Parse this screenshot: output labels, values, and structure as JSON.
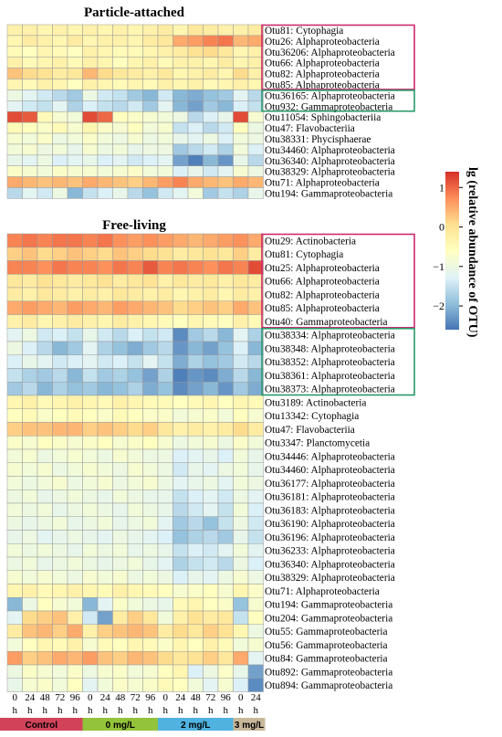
{
  "chart_data": [
    {
      "type": "heatmap",
      "title": "Particle-attached",
      "columns": [
        "0 h",
        "24 h",
        "48 h",
        "72 h",
        "96 h",
        "0 h",
        "24 h",
        "48 h",
        "72 h",
        "96 h",
        "0 h",
        "24 h",
        "48 h",
        "72 h",
        "96 h",
        "0 h",
        "24 h"
      ],
      "rows": [
        "Otu81: Cytophagia",
        "Otu26: Alphaproteobacteria",
        "Otu36206: Alphaproteobacteria",
        "Otu66: Alphaproteobacteria",
        "Otu82: Alphaproteobacteria",
        "Otu85: Alphaproteobacteria",
        "Otu36165: Alphaproteobacteria",
        "Otu932: Gammaproteobacteria",
        "Otu11054: Sphingobacteriia",
        "Otu47: Flavobacteriia",
        "Otu38331: Phycisphaerae",
        "Otu34460: Alphaproteobacteria",
        "Otu36340: Alphaproteobacteria",
        "Otu38329: Alphaproteobacteria",
        "Otu71: Alphaproteobacteria",
        "Otu194: Gammaproteobacteria"
      ],
      "values": [
        [
          -0.3,
          -0.3,
          -0.4,
          -0.3,
          -0.4,
          -0.3,
          -0.4,
          -0.3,
          -0.4,
          -0.3,
          -0.2,
          -0.4,
          -0.1,
          -0.2,
          -0.3,
          -0.3,
          -0.2
        ],
        [
          -0.4,
          -0.2,
          -0.3,
          -0.4,
          -0.2,
          -0.4,
          -0.3,
          -0.3,
          -0.4,
          -0.2,
          -0.1,
          0.5,
          0.6,
          0.8,
          0.9,
          0.4,
          0.5
        ],
        [
          -0.5,
          -0.6,
          -0.4,
          -0.5,
          -0.6,
          -0.3,
          -0.4,
          -0.5,
          -0.5,
          -0.4,
          -0.3,
          -0.2,
          0.0,
          0.1,
          -0.1,
          -0.4,
          -0.3
        ],
        [
          -0.3,
          -0.5,
          -0.4,
          -0.3,
          -0.5,
          -0.3,
          -0.4,
          -0.6,
          -0.4,
          -0.3,
          -0.5,
          -0.3,
          -0.3,
          -0.4,
          -0.2,
          -0.4,
          -0.3
        ],
        [
          0.3,
          0.1,
          0.0,
          -0.2,
          -0.1,
          0.4,
          0.1,
          -0.1,
          -0.2,
          -0.3,
          -0.1,
          -0.4,
          -0.3,
          -0.2,
          -0.4,
          0.1,
          -0.3
        ],
        [
          -0.4,
          -0.5,
          -0.3,
          -0.4,
          -0.6,
          -0.3,
          -0.4,
          -0.5,
          -0.4,
          -0.5,
          -0.3,
          -0.4,
          -0.3,
          -0.5,
          -0.4,
          -0.3,
          -0.4
        ],
        [
          -1.0,
          -1.2,
          -1.4,
          -1.6,
          -1.8,
          -1.0,
          -1.4,
          -1.5,
          -1.8,
          -2.0,
          -1.4,
          -2.0,
          -2.1,
          -1.9,
          -1.8,
          -1.2,
          -1.6
        ],
        [
          -1.2,
          -1.4,
          -1.5,
          -1.2,
          -1.7,
          -1.3,
          -1.5,
          -1.6,
          -1.4,
          -1.8,
          -1.2,
          -2.0,
          -2.2,
          -1.8,
          -2.0,
          -1.3,
          -1.5
        ],
        [
          1.2,
          1.1,
          -0.5,
          -0.8,
          -0.9,
          1.2,
          1.0,
          -0.6,
          -0.7,
          -0.8,
          -0.9,
          -1.0,
          -1.6,
          -1.3,
          -1.1,
          1.2,
          -0.8
        ],
        [
          -0.5,
          -0.6,
          -0.7,
          -0.5,
          -0.8,
          -0.4,
          -0.7,
          -0.8,
          -0.6,
          -0.9,
          -0.8,
          -1.5,
          -1.3,
          -1.6,
          -1.4,
          -0.6,
          -1.0
        ],
        [
          -0.8,
          -0.9,
          -0.7,
          -1.0,
          -0.9,
          -0.7,
          -0.9,
          -1.0,
          -0.8,
          -1.0,
          -0.9,
          -1.1,
          -1.2,
          -1.0,
          -1.3,
          -0.9,
          -1.0
        ],
        [
          -0.9,
          -0.8,
          -1.0,
          -0.9,
          -1.1,
          -0.8,
          -1.0,
          -0.9,
          -1.1,
          -1.0,
          -1.0,
          -1.8,
          -1.6,
          -1.4,
          -1.7,
          -0.9,
          -1.3
        ],
        [
          -1.1,
          -1.2,
          -1.0,
          -1.3,
          -1.2,
          -1.1,
          -1.3,
          -1.2,
          -1.4,
          -1.3,
          -1.2,
          -2.2,
          -2.5,
          -2.0,
          -2.3,
          -1.1,
          -1.6
        ],
        [
          -0.7,
          -0.8,
          -0.9,
          -0.7,
          -0.8,
          -0.8,
          -0.9,
          -0.8,
          -0.7,
          -0.9,
          -0.9,
          -1.3,
          -1.1,
          -1.4,
          -1.2,
          -0.8,
          -1.0
        ],
        [
          0.5,
          0.4,
          0.3,
          0.4,
          0.3,
          0.5,
          0.4,
          0.3,
          0.2,
          0.4,
          0.6,
          0.8,
          0.5,
          0.4,
          0.3,
          0.5,
          0.4
        ],
        [
          -1.6,
          -1.2,
          -1.4,
          -1.0,
          -2.0,
          -1.5,
          -1.3,
          -1.1,
          -1.6,
          -1.9,
          -1.4,
          -1.2,
          -0.9,
          -1.8,
          -1.5,
          -1.7,
          -1.1
        ]
      ],
      "highlight_boxes": [
        {
          "rows": [
            0,
            5
          ],
          "color": "#cc2a6e"
        },
        {
          "rows": [
            6,
            7
          ],
          "color": "#2a9a6a"
        }
      ]
    },
    {
      "type": "heatmap",
      "title": "Free-living",
      "columns": [
        "0 h",
        "24 h",
        "48 h",
        "72 h",
        "96 h",
        "0 h",
        "24 h",
        "48 h",
        "72 h",
        "96 h",
        "0 h",
        "24 h",
        "48 h",
        "72 h",
        "96 h",
        "0 h",
        "24 h"
      ],
      "rows": [
        "Otu29: Actinobacteria",
        "Otu81: Cytophagia",
        "Otu25: Alphaproteobacteria",
        "Otu66: Alphaproteobacteria",
        "Otu82: Alphaproteobacteria",
        "Otu85: Alphaproteobacteria",
        "Otu40: Gammaproteobacteria",
        "Otu38334: Alphaproteobacteria",
        "Otu38348: Alphaproteobacteria",
        "Otu38352: Alphaproteobacteria",
        "Otu38361: Alphaproteobacteria",
        "Otu38373: Alphaproteobacteria",
        "Otu3189: Actinobacteria",
        "Otu13342: Cytophagia",
        "Otu47: Flavobacteriia",
        "Otu3347: Planctomycetia",
        "Otu34446: Alphaproteobacteria",
        "Otu34460: Alphaproteobacteria",
        "Otu36177: Alphaproteobacteria",
        "Otu36181: Alphaproteobacteria",
        "Otu36183: Alphaproteobacteria",
        "Otu36190: Alphaproteobacteria",
        "Otu36196: Alphaproteobacteria",
        "Otu36233: Alphaproteobacteria",
        "Otu36340: Alphaproteobacteria",
        "Otu38329: Alphaproteobacteria",
        "Otu71: Alphaproteobacteria",
        "Otu194: Gammaproteobacteria",
        "Otu204: Gammaproteobacteria",
        "Otu55: Gammaproteobacteria",
        "Otu56: Gammaproteobacteria",
        "Otu84: Gammaproteobacteria",
        "Otu892: Gammaproteobacteria",
        "Otu894: Gammaproteobacteria"
      ],
      "values": [
        [
          0.8,
          0.9,
          0.8,
          0.9,
          0.9,
          0.8,
          0.9,
          0.7,
          0.6,
          0.7,
          0.6,
          0.5,
          0.4,
          0.5,
          0.6,
          0.7,
          0.5
        ],
        [
          0.2,
          0.3,
          0.1,
          0.2,
          0.3,
          0.2,
          0.1,
          0.3,
          0.2,
          0.1,
          0.0,
          -0.2,
          -0.1,
          0.0,
          -0.1,
          0.2,
          -0.2
        ],
        [
          0.8,
          0.8,
          0.7,
          0.9,
          0.8,
          0.8,
          0.7,
          0.9,
          0.8,
          1.1,
          0.8,
          0.9,
          0.8,
          0.7,
          0.9,
          0.8,
          1.2
        ],
        [
          -0.1,
          -0.2,
          0.0,
          -0.1,
          -0.2,
          -0.1,
          0.0,
          -0.2,
          -0.1,
          0.0,
          -0.3,
          -0.1,
          -0.2,
          -0.1,
          -0.3,
          -0.1,
          -0.2
        ],
        [
          -0.2,
          -0.3,
          -0.1,
          -0.2,
          -0.3,
          -0.2,
          -0.3,
          -0.1,
          -0.2,
          -0.3,
          -0.2,
          -0.4,
          -0.3,
          -0.2,
          -0.4,
          -0.2,
          -0.3
        ],
        [
          0.5,
          0.6,
          0.5,
          0.4,
          0.6,
          0.5,
          0.4,
          0.6,
          0.5,
          0.4,
          0.3,
          0.1,
          0.2,
          0.3,
          0.2,
          0.5,
          0.3
        ],
        [
          -0.3,
          -0.2,
          -0.4,
          -0.3,
          -0.2,
          -0.3,
          -0.4,
          -0.2,
          -0.3,
          -0.4,
          -0.5,
          -0.6,
          -0.4,
          -0.5,
          -0.6,
          -0.3,
          -0.5
        ],
        [
          -1.2,
          -1.0,
          -1.4,
          -1.3,
          -1.5,
          -1.1,
          -1.4,
          -1.6,
          -1.3,
          -1.5,
          -1.4,
          -2.4,
          -1.8,
          -1.6,
          -2.0,
          -1.2,
          -1.7
        ],
        [
          -1.0,
          -1.3,
          -1.6,
          -2.0,
          -1.8,
          -1.2,
          -1.7,
          -1.9,
          -2.1,
          -1.8,
          -1.6,
          -2.3,
          -2.0,
          -2.2,
          -1.9,
          -1.3,
          -2.0
        ],
        [
          -1.3,
          -1.1,
          -1.2,
          -1.4,
          -1.3,
          -1.2,
          -1.4,
          -1.3,
          -1.5,
          -1.2,
          -1.5,
          -2.1,
          -1.7,
          -1.9,
          -1.8,
          -1.4,
          -1.6
        ],
        [
          -1.5,
          -1.7,
          -1.8,
          -1.6,
          -2.0,
          -1.5,
          -1.8,
          -1.7,
          -1.9,
          -2.2,
          -1.7,
          -2.5,
          -2.3,
          -2.4,
          -2.1,
          -1.6,
          -2.0
        ],
        [
          -1.8,
          -1.6,
          -2.0,
          -1.7,
          -1.9,
          -1.8,
          -2.0,
          -1.9,
          -1.7,
          -2.1,
          -1.9,
          -2.4,
          -2.2,
          -2.0,
          -2.3,
          -1.8,
          -2.1
        ],
        [
          -0.4,
          -0.3,
          -0.5,
          -0.4,
          -0.3,
          -0.4,
          -0.5,
          -0.3,
          -0.4,
          -0.5,
          -0.5,
          -0.6,
          -0.5,
          -0.4,
          -0.6,
          -0.4,
          -0.5
        ],
        [
          -0.6,
          -0.5,
          -0.7,
          -0.6,
          -0.5,
          -0.6,
          -0.7,
          -0.5,
          -0.6,
          -0.7,
          -0.7,
          -0.9,
          -0.8,
          -0.7,
          -0.9,
          -0.6,
          -0.8
        ],
        [
          0.2,
          0.3,
          0.3,
          0.4,
          0.4,
          0.2,
          0.3,
          0.2,
          0.1,
          0.2,
          -0.1,
          -0.3,
          -0.2,
          -0.3,
          -0.2,
          0.1,
          -0.2
        ],
        [
          -0.7,
          -0.8,
          -0.6,
          -0.7,
          -0.8,
          -0.7,
          -0.6,
          -0.8,
          -0.7,
          -0.6,
          -0.8,
          -1.0,
          -0.9,
          -0.8,
          -1.0,
          -0.7,
          -0.9
        ],
        [
          -0.9,
          -0.8,
          -1.0,
          -0.9,
          -0.8,
          -0.9,
          -1.0,
          -0.8,
          -0.9,
          -1.0,
          -1.0,
          -1.3,
          -1.2,
          -1.1,
          -1.3,
          -0.9,
          -1.1
        ],
        [
          -0.8,
          -0.9,
          -0.8,
          -1.0,
          -0.9,
          -0.8,
          -0.9,
          -1.0,
          -0.8,
          -0.9,
          -1.0,
          -1.4,
          -1.1,
          -1.2,
          -1.0,
          -0.9,
          -1.1
        ],
        [
          -0.9,
          -1.0,
          -0.9,
          -0.8,
          -1.0,
          -0.9,
          -0.8,
          -1.0,
          -0.9,
          -0.8,
          -1.0,
          -1.2,
          -1.1,
          -1.0,
          -1.2,
          -0.9,
          -1.0
        ],
        [
          -1.0,
          -0.9,
          -1.1,
          -1.0,
          -0.9,
          -1.0,
          -1.1,
          -0.9,
          -1.0,
          -1.1,
          -1.1,
          -1.5,
          -1.3,
          -1.2,
          -1.4,
          -1.0,
          -1.2
        ],
        [
          -0.9,
          -1.0,
          -0.9,
          -1.1,
          -1.0,
          -0.9,
          -1.0,
          -1.1,
          -0.9,
          -1.0,
          -1.1,
          -1.6,
          -1.4,
          -1.2,
          -1.5,
          -0.9,
          -1.3
        ],
        [
          -1.0,
          -1.1,
          -1.0,
          -0.9,
          -1.1,
          -1.0,
          -0.9,
          -1.1,
          -1.0,
          -0.9,
          -1.2,
          -1.8,
          -1.6,
          -1.9,
          -1.5,
          -1.0,
          -1.4
        ],
        [
          -1.1,
          -1.0,
          -1.2,
          -1.1,
          -1.0,
          -1.1,
          -1.2,
          -1.0,
          -1.1,
          -1.2,
          -1.3,
          -1.9,
          -1.7,
          -1.6,
          -1.8,
          -1.1,
          -1.5
        ],
        [
          -0.9,
          -1.0,
          -0.9,
          -1.0,
          -1.1,
          -0.9,
          -1.0,
          -0.9,
          -1.1,
          -1.0,
          -1.1,
          -1.5,
          -1.3,
          -1.4,
          -1.2,
          -0.9,
          -1.2
        ],
        [
          -1.0,
          -0.9,
          -1.1,
          -1.0,
          -0.9,
          -1.0,
          -1.1,
          -1.0,
          -0.9,
          -1.1,
          -1.2,
          -1.7,
          -1.5,
          -1.4,
          -1.6,
          -1.0,
          -1.3
        ],
        [
          -0.8,
          -0.9,
          -0.8,
          -0.9,
          -1.0,
          -0.8,
          -0.9,
          -0.8,
          -1.0,
          -0.9,
          -1.0,
          -1.3,
          -1.1,
          -1.2,
          -1.0,
          -0.8,
          -1.0
        ],
        [
          -0.4,
          -0.3,
          -0.5,
          -0.4,
          -0.3,
          -0.4,
          -0.5,
          -0.3,
          -0.4,
          -0.5,
          -0.6,
          -0.8,
          -0.7,
          -0.6,
          -0.8,
          -0.4,
          -0.7
        ],
        [
          -2.0,
          -1.0,
          -0.6,
          -0.8,
          -0.9,
          -2.0,
          -1.2,
          -0.7,
          -0.9,
          -1.0,
          -1.1,
          -0.5,
          -0.4,
          -0.6,
          -0.7,
          -1.9,
          -0.8
        ],
        [
          -1.2,
          0.1,
          0.2,
          0.3,
          -0.3,
          -1.4,
          -2.2,
          -0.2,
          0.2,
          -0.1,
          -0.9,
          -0.3,
          0.0,
          -0.2,
          -0.1,
          -1.5,
          -0.6
        ],
        [
          -0.2,
          0.3,
          0.4,
          0.2,
          0.5,
          -0.3,
          0.2,
          0.3,
          0.4,
          0.3,
          -0.2,
          0.1,
          -0.1,
          0.2,
          0.0,
          -0.4,
          -1.0
        ],
        [
          -0.9,
          -0.6,
          -0.4,
          -0.5,
          -0.3,
          -0.8,
          -0.5,
          -0.6,
          -0.4,
          -0.5,
          -0.7,
          -0.4,
          -0.6,
          -0.3,
          -0.5,
          -0.9,
          -0.8
        ],
        [
          0.6,
          0.2,
          0.3,
          0.5,
          0.4,
          0.6,
          0.3,
          0.2,
          0.4,
          0.3,
          0.1,
          -0.1,
          0.0,
          0.2,
          -0.1,
          0.5,
          -1.2
        ],
        [
          -1.0,
          -0.7,
          -0.8,
          -0.9,
          -0.7,
          -1.0,
          -0.8,
          -0.7,
          -0.9,
          -0.8,
          -0.6,
          -0.4,
          -1.3,
          -1.0,
          -0.7,
          -1.1,
          -2.2
        ],
        [
          -1.1,
          -0.8,
          -0.7,
          -0.9,
          -0.6,
          -1.2,
          -0.9,
          -0.7,
          -0.8,
          -0.7,
          -0.5,
          -0.6,
          -0.9,
          -1.2,
          -0.8,
          -1.3,
          -2.4
        ]
      ],
      "highlight_boxes": [
        {
          "rows": [
            0,
            6
          ],
          "color": "#cc2a6e"
        },
        {
          "rows": [
            7,
            11
          ],
          "color": "#2a9a6a"
        }
      ]
    }
  ],
  "x_tick_numbers": [
    "0",
    "24",
    "48",
    "72",
    "96",
    "0",
    "24",
    "48",
    "72",
    "96",
    "0",
    "24",
    "48",
    "72",
    "96",
    "0",
    "24"
  ],
  "x_tick_unit": "h",
  "groups": [
    {
      "label": "Control",
      "start": 0,
      "end": 4,
      "color": "#d2435a"
    },
    {
      "label": "0 mg/L",
      "start": 5,
      "end": 9,
      "color": "#93c33a"
    },
    {
      "label": "2 mg/L",
      "start": 10,
      "end": 14,
      "color": "#4fb2df"
    },
    {
      "label": "3 mg/L",
      "start": 15,
      "end": 16,
      "color": "#c8b89a"
    }
  ],
  "colorbar": {
    "title": "lg (relative abundance of OTU)",
    "ticks": [
      1,
      0,
      -1,
      -2
    ],
    "range": [
      -2.6,
      1.4
    ],
    "colors": [
      "#4575b4",
      "#91bfdb",
      "#e0f3f8",
      "#ffffbf",
      "#fee090",
      "#fc8d59",
      "#d73027"
    ]
  }
}
